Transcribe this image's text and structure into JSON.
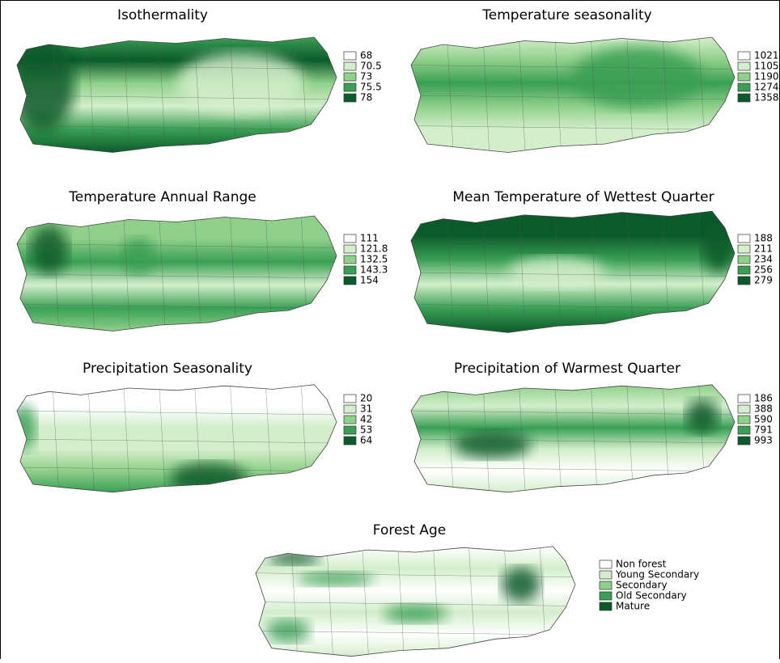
{
  "legend_colors": [
    "#ffffff",
    "#d3eecb",
    "#8fd08a",
    "#3a9f55",
    "#0b5a2a"
  ],
  "panels": [
    {
      "title": "Isothermality",
      "legend": [
        68,
        70.5,
        73,
        75.5,
        78
      ]
    },
    {
      "title": "Temperature seasonality",
      "legend": [
        1021,
        1105,
        1190,
        1274,
        1358
      ]
    },
    {
      "title": "Temperature Annual Range",
      "legend": [
        111,
        121.8,
        132.5,
        143.3,
        154
      ]
    },
    {
      "title": "Mean Temperature of Wettest Quarter",
      "legend": [
        188,
        211,
        234,
        256,
        279
      ]
    },
    {
      "title": "Precipitation Seasonality",
      "legend": [
        20,
        31,
        42,
        53,
        64
      ]
    },
    {
      "title": "Precipitation of Warmest Quarter",
      "legend": [
        186,
        388,
        590,
        791,
        993
      ]
    },
    {
      "title": "Forest Age",
      "legend": [
        "Non forest",
        "Young Secondary",
        "Secondary",
        "Old Secondary",
        "Mature"
      ]
    }
  ]
}
